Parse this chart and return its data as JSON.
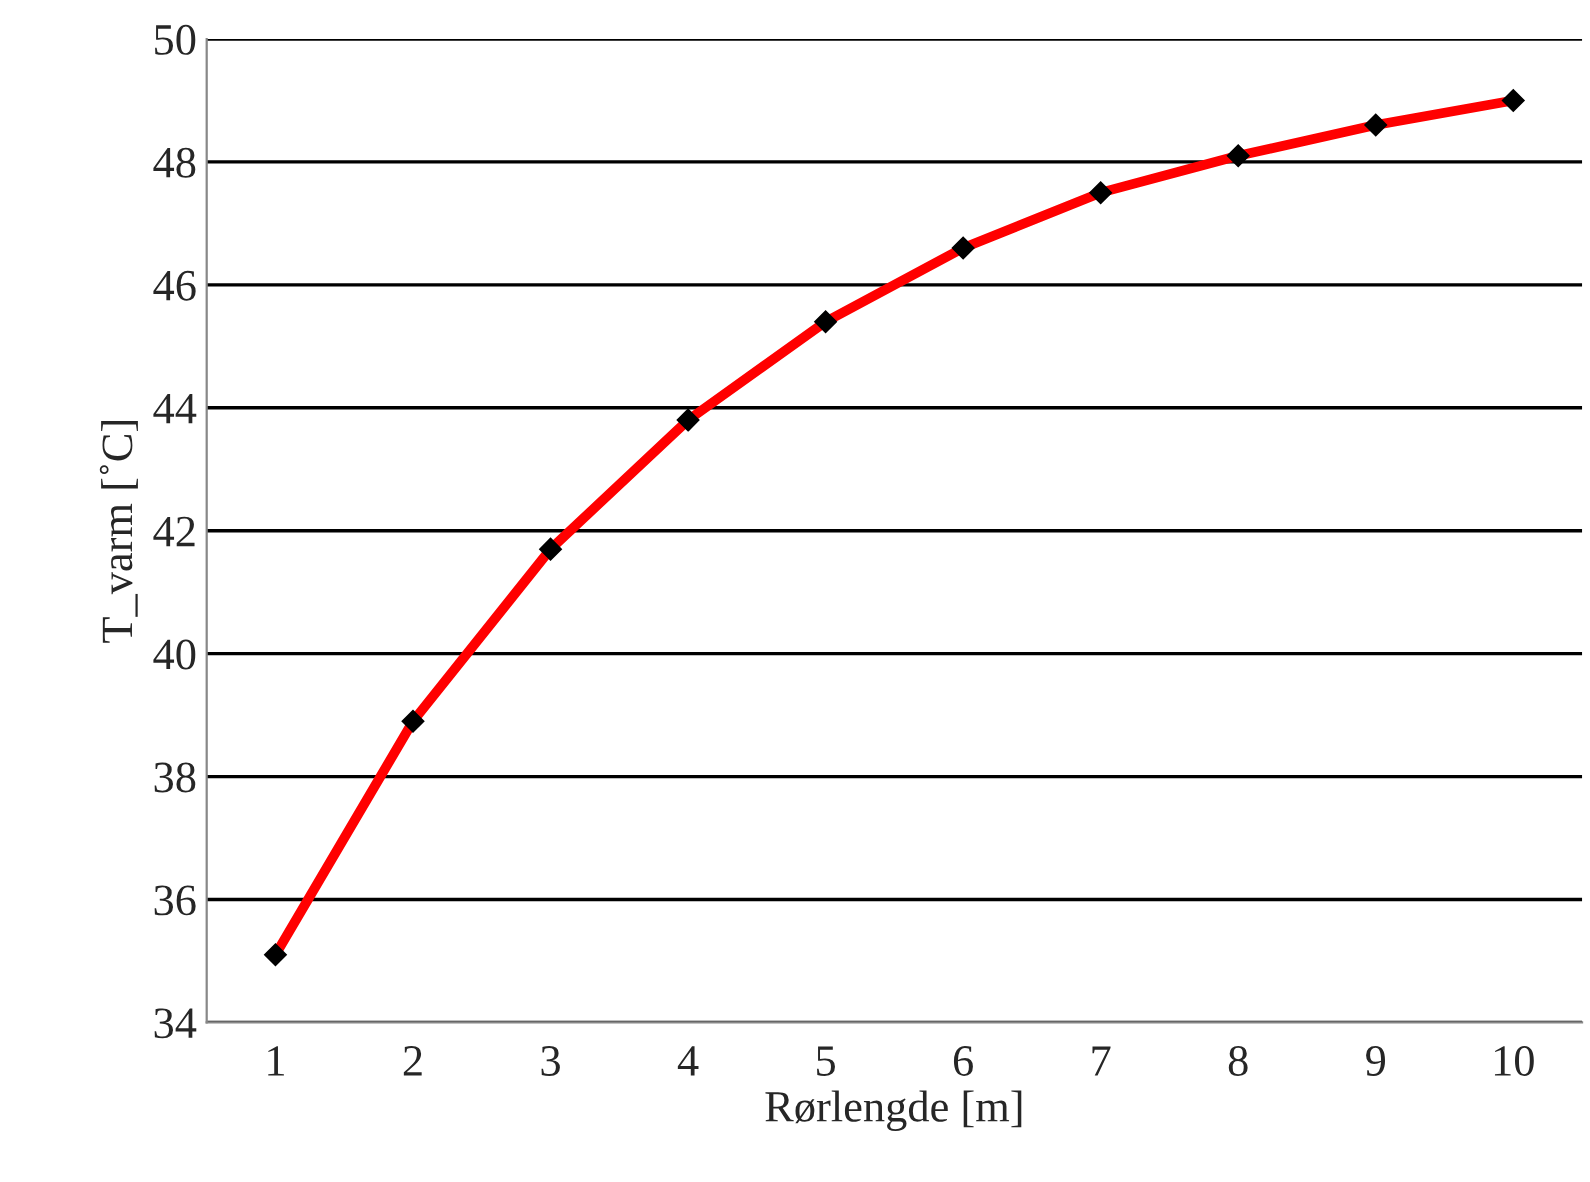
{
  "chart_data": {
    "type": "line",
    "xlabel": "Rørlengde [m]",
    "ylabel": "T_varm [˚C]",
    "categories": [
      "1",
      "2",
      "3",
      "4",
      "5",
      "6",
      "7",
      "8",
      "9",
      "10"
    ],
    "series": [
      {
        "color": "#ff0000",
        "values": [
          35.1,
          38.9,
          41.7,
          43.8,
          45.4,
          46.6,
          47.5,
          48.1,
          48.6,
          49.0
        ]
      }
    ],
    "ylim": [
      34,
      50
    ],
    "yticks": [
      34,
      36,
      38,
      40,
      42,
      44,
      46,
      48,
      50
    ],
    "grid": "y",
    "marker": "diamond",
    "line_style": "solid"
  }
}
